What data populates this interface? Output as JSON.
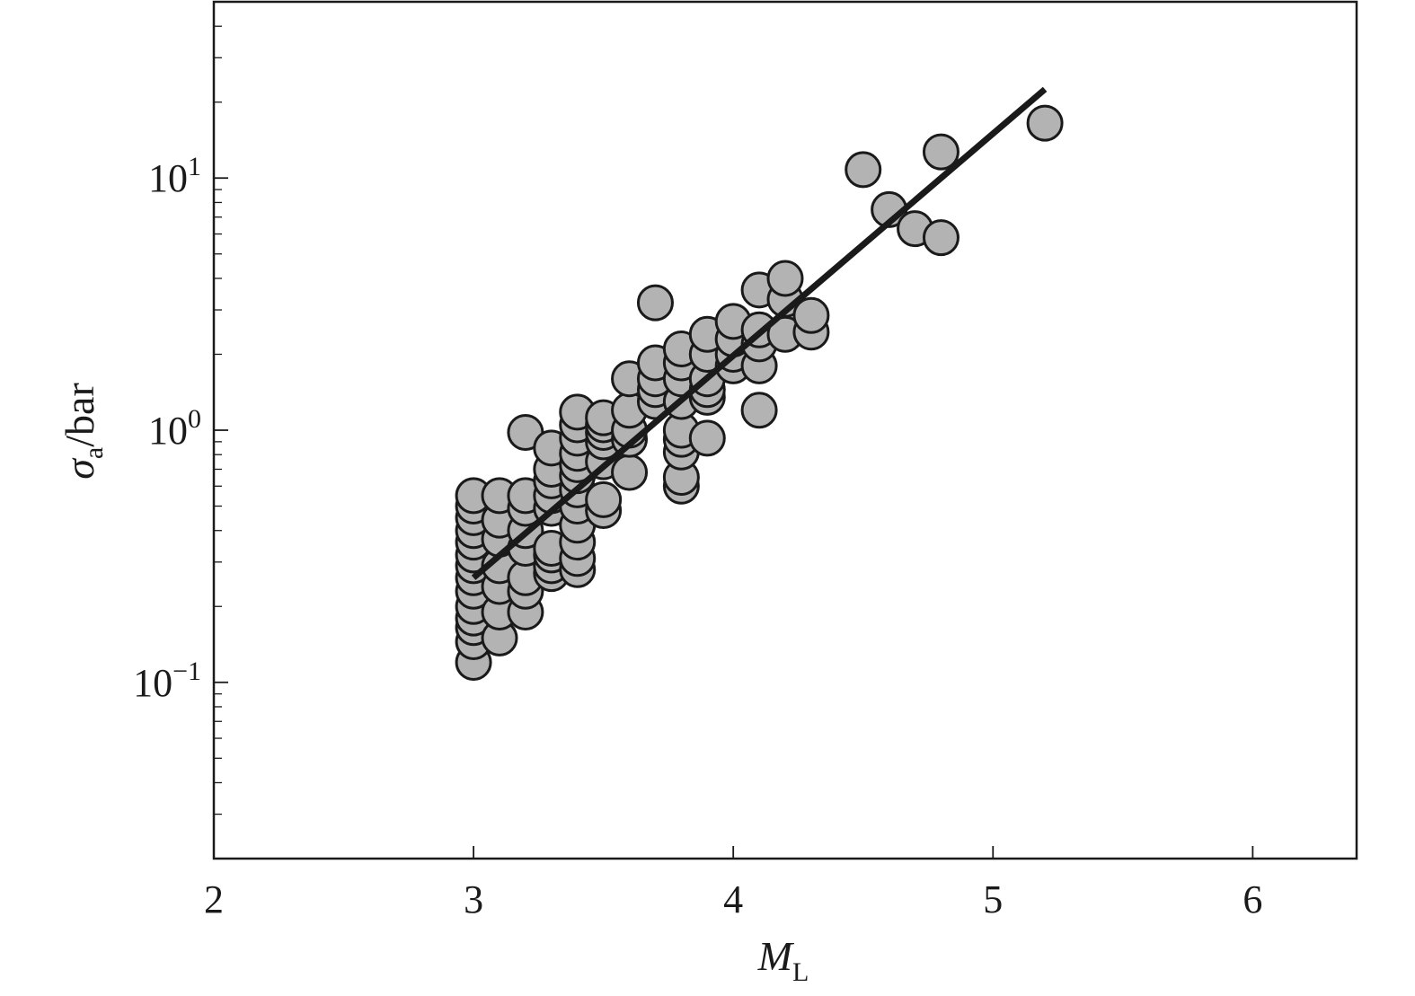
{
  "colors": {
    "marker_fill": "#b3b3b3",
    "marker_edge": "#1a1a1a",
    "fit_line": "#1a1a1a"
  },
  "chart_data": {
    "type": "scatter",
    "title": "",
    "xlabel": {
      "symbol": "M",
      "subscript": "L"
    },
    "ylabel": {
      "symbol": "σ",
      "subscript": "a",
      "suffix": "/bar"
    },
    "xlim": [
      2,
      6.4
    ],
    "ylim": [
      0.02,
      50
    ],
    "yscale": "log",
    "grid": false,
    "x_ticks": [
      2,
      3,
      4,
      5,
      6
    ],
    "x_tick_labels": [
      "2",
      "3",
      "4",
      "5",
      "6"
    ],
    "y_ticks": [
      {
        "value": 0.1,
        "base": "10",
        "exp": "−1"
      },
      {
        "value": 1,
        "base": "10",
        "exp": "0"
      },
      {
        "value": 10,
        "base": "10",
        "exp": "1"
      }
    ],
    "series": [
      {
        "marker": "circle",
        "points": [
          {
            "x": 3.0,
            "y": 0.12
          },
          {
            "x": 3.0,
            "y": 0.145
          },
          {
            "x": 3.0,
            "y": 0.165
          },
          {
            "x": 3.0,
            "y": 0.18
          },
          {
            "x": 3.0,
            "y": 0.2
          },
          {
            "x": 3.0,
            "y": 0.23
          },
          {
            "x": 3.0,
            "y": 0.26
          },
          {
            "x": 3.0,
            "y": 0.29
          },
          {
            "x": 3.0,
            "y": 0.32
          },
          {
            "x": 3.0,
            "y": 0.36
          },
          {
            "x": 3.0,
            "y": 0.4
          },
          {
            "x": 3.0,
            "y": 0.45
          },
          {
            "x": 3.0,
            "y": 0.5
          },
          {
            "x": 3.0,
            "y": 0.55
          },
          {
            "x": 3.1,
            "y": 0.15
          },
          {
            "x": 3.1,
            "y": 0.19
          },
          {
            "x": 3.1,
            "y": 0.24
          },
          {
            "x": 3.1,
            "y": 0.29
          },
          {
            "x": 3.1,
            "y": 0.37
          },
          {
            "x": 3.1,
            "y": 0.44
          },
          {
            "x": 3.1,
            "y": 0.55
          },
          {
            "x": 3.2,
            "y": 0.19
          },
          {
            "x": 3.2,
            "y": 0.23
          },
          {
            "x": 3.2,
            "y": 0.26
          },
          {
            "x": 3.2,
            "y": 0.34
          },
          {
            "x": 3.2,
            "y": 0.4
          },
          {
            "x": 3.2,
            "y": 0.49
          },
          {
            "x": 3.2,
            "y": 0.55
          },
          {
            "x": 3.2,
            "y": 0.98
          },
          {
            "x": 3.3,
            "y": 0.27
          },
          {
            "x": 3.3,
            "y": 0.29
          },
          {
            "x": 3.3,
            "y": 0.32
          },
          {
            "x": 3.3,
            "y": 0.34
          },
          {
            "x": 3.3,
            "y": 0.49
          },
          {
            "x": 3.3,
            "y": 0.55
          },
          {
            "x": 3.3,
            "y": 0.63
          },
          {
            "x": 3.3,
            "y": 0.7
          },
          {
            "x": 3.3,
            "y": 0.85
          },
          {
            "x": 3.4,
            "y": 0.28
          },
          {
            "x": 3.4,
            "y": 0.31
          },
          {
            "x": 3.4,
            "y": 0.36
          },
          {
            "x": 3.4,
            "y": 0.42
          },
          {
            "x": 3.4,
            "y": 0.5
          },
          {
            "x": 3.4,
            "y": 0.58
          },
          {
            "x": 3.4,
            "y": 0.66
          },
          {
            "x": 3.4,
            "y": 0.73
          },
          {
            "x": 3.4,
            "y": 0.81
          },
          {
            "x": 3.4,
            "y": 0.93
          },
          {
            "x": 3.4,
            "y": 1.05
          },
          {
            "x": 3.4,
            "y": 1.18
          },
          {
            "x": 3.5,
            "y": 0.48
          },
          {
            "x": 3.5,
            "y": 0.53
          },
          {
            "x": 3.5,
            "y": 0.75
          },
          {
            "x": 3.5,
            "y": 0.9
          },
          {
            "x": 3.5,
            "y": 0.98
          },
          {
            "x": 3.5,
            "y": 1.05
          },
          {
            "x": 3.5,
            "y": 1.12
          },
          {
            "x": 3.6,
            "y": 0.68
          },
          {
            "x": 3.6,
            "y": 0.92
          },
          {
            "x": 3.6,
            "y": 1.0
          },
          {
            "x": 3.6,
            "y": 1.2
          },
          {
            "x": 3.6,
            "y": 1.6
          },
          {
            "x": 3.7,
            "y": 1.3
          },
          {
            "x": 3.7,
            "y": 1.45
          },
          {
            "x": 3.7,
            "y": 1.6
          },
          {
            "x": 3.7,
            "y": 1.85
          },
          {
            "x": 3.7,
            "y": 3.2
          },
          {
            "x": 3.8,
            "y": 0.6
          },
          {
            "x": 3.8,
            "y": 0.65
          },
          {
            "x": 3.8,
            "y": 0.82
          },
          {
            "x": 3.8,
            "y": 0.92
          },
          {
            "x": 3.8,
            "y": 1.0
          },
          {
            "x": 3.8,
            "y": 1.3
          },
          {
            "x": 3.8,
            "y": 1.6
          },
          {
            "x": 3.8,
            "y": 1.85
          },
          {
            "x": 3.8,
            "y": 2.1
          },
          {
            "x": 3.9,
            "y": 0.93
          },
          {
            "x": 3.9,
            "y": 1.35
          },
          {
            "x": 3.9,
            "y": 1.45
          },
          {
            "x": 3.9,
            "y": 1.6
          },
          {
            "x": 3.9,
            "y": 2.0
          },
          {
            "x": 3.9,
            "y": 2.4
          },
          {
            "x": 4.0,
            "y": 1.8
          },
          {
            "x": 4.0,
            "y": 2.0
          },
          {
            "x": 4.0,
            "y": 2.3
          },
          {
            "x": 4.0,
            "y": 2.7
          },
          {
            "x": 4.1,
            "y": 1.2
          },
          {
            "x": 4.1,
            "y": 1.8
          },
          {
            "x": 4.1,
            "y": 2.2
          },
          {
            "x": 4.1,
            "y": 2.5
          },
          {
            "x": 4.1,
            "y": 3.6
          },
          {
            "x": 4.2,
            "y": 2.4
          },
          {
            "x": 4.2,
            "y": 3.3
          },
          {
            "x": 4.2,
            "y": 4.0
          },
          {
            "x": 4.3,
            "y": 2.45
          },
          {
            "x": 4.3,
            "y": 2.85
          },
          {
            "x": 4.5,
            "y": 10.8
          },
          {
            "x": 4.6,
            "y": 7.5
          },
          {
            "x": 4.7,
            "y": 6.3
          },
          {
            "x": 4.8,
            "y": 5.8
          },
          {
            "x": 4.8,
            "y": 12.7
          },
          {
            "x": 5.2,
            "y": 16.5
          }
        ]
      }
    ],
    "fit_line": {
      "x": [
        3.0,
        5.2
      ],
      "y": [
        0.26,
        22.5
      ]
    }
  }
}
